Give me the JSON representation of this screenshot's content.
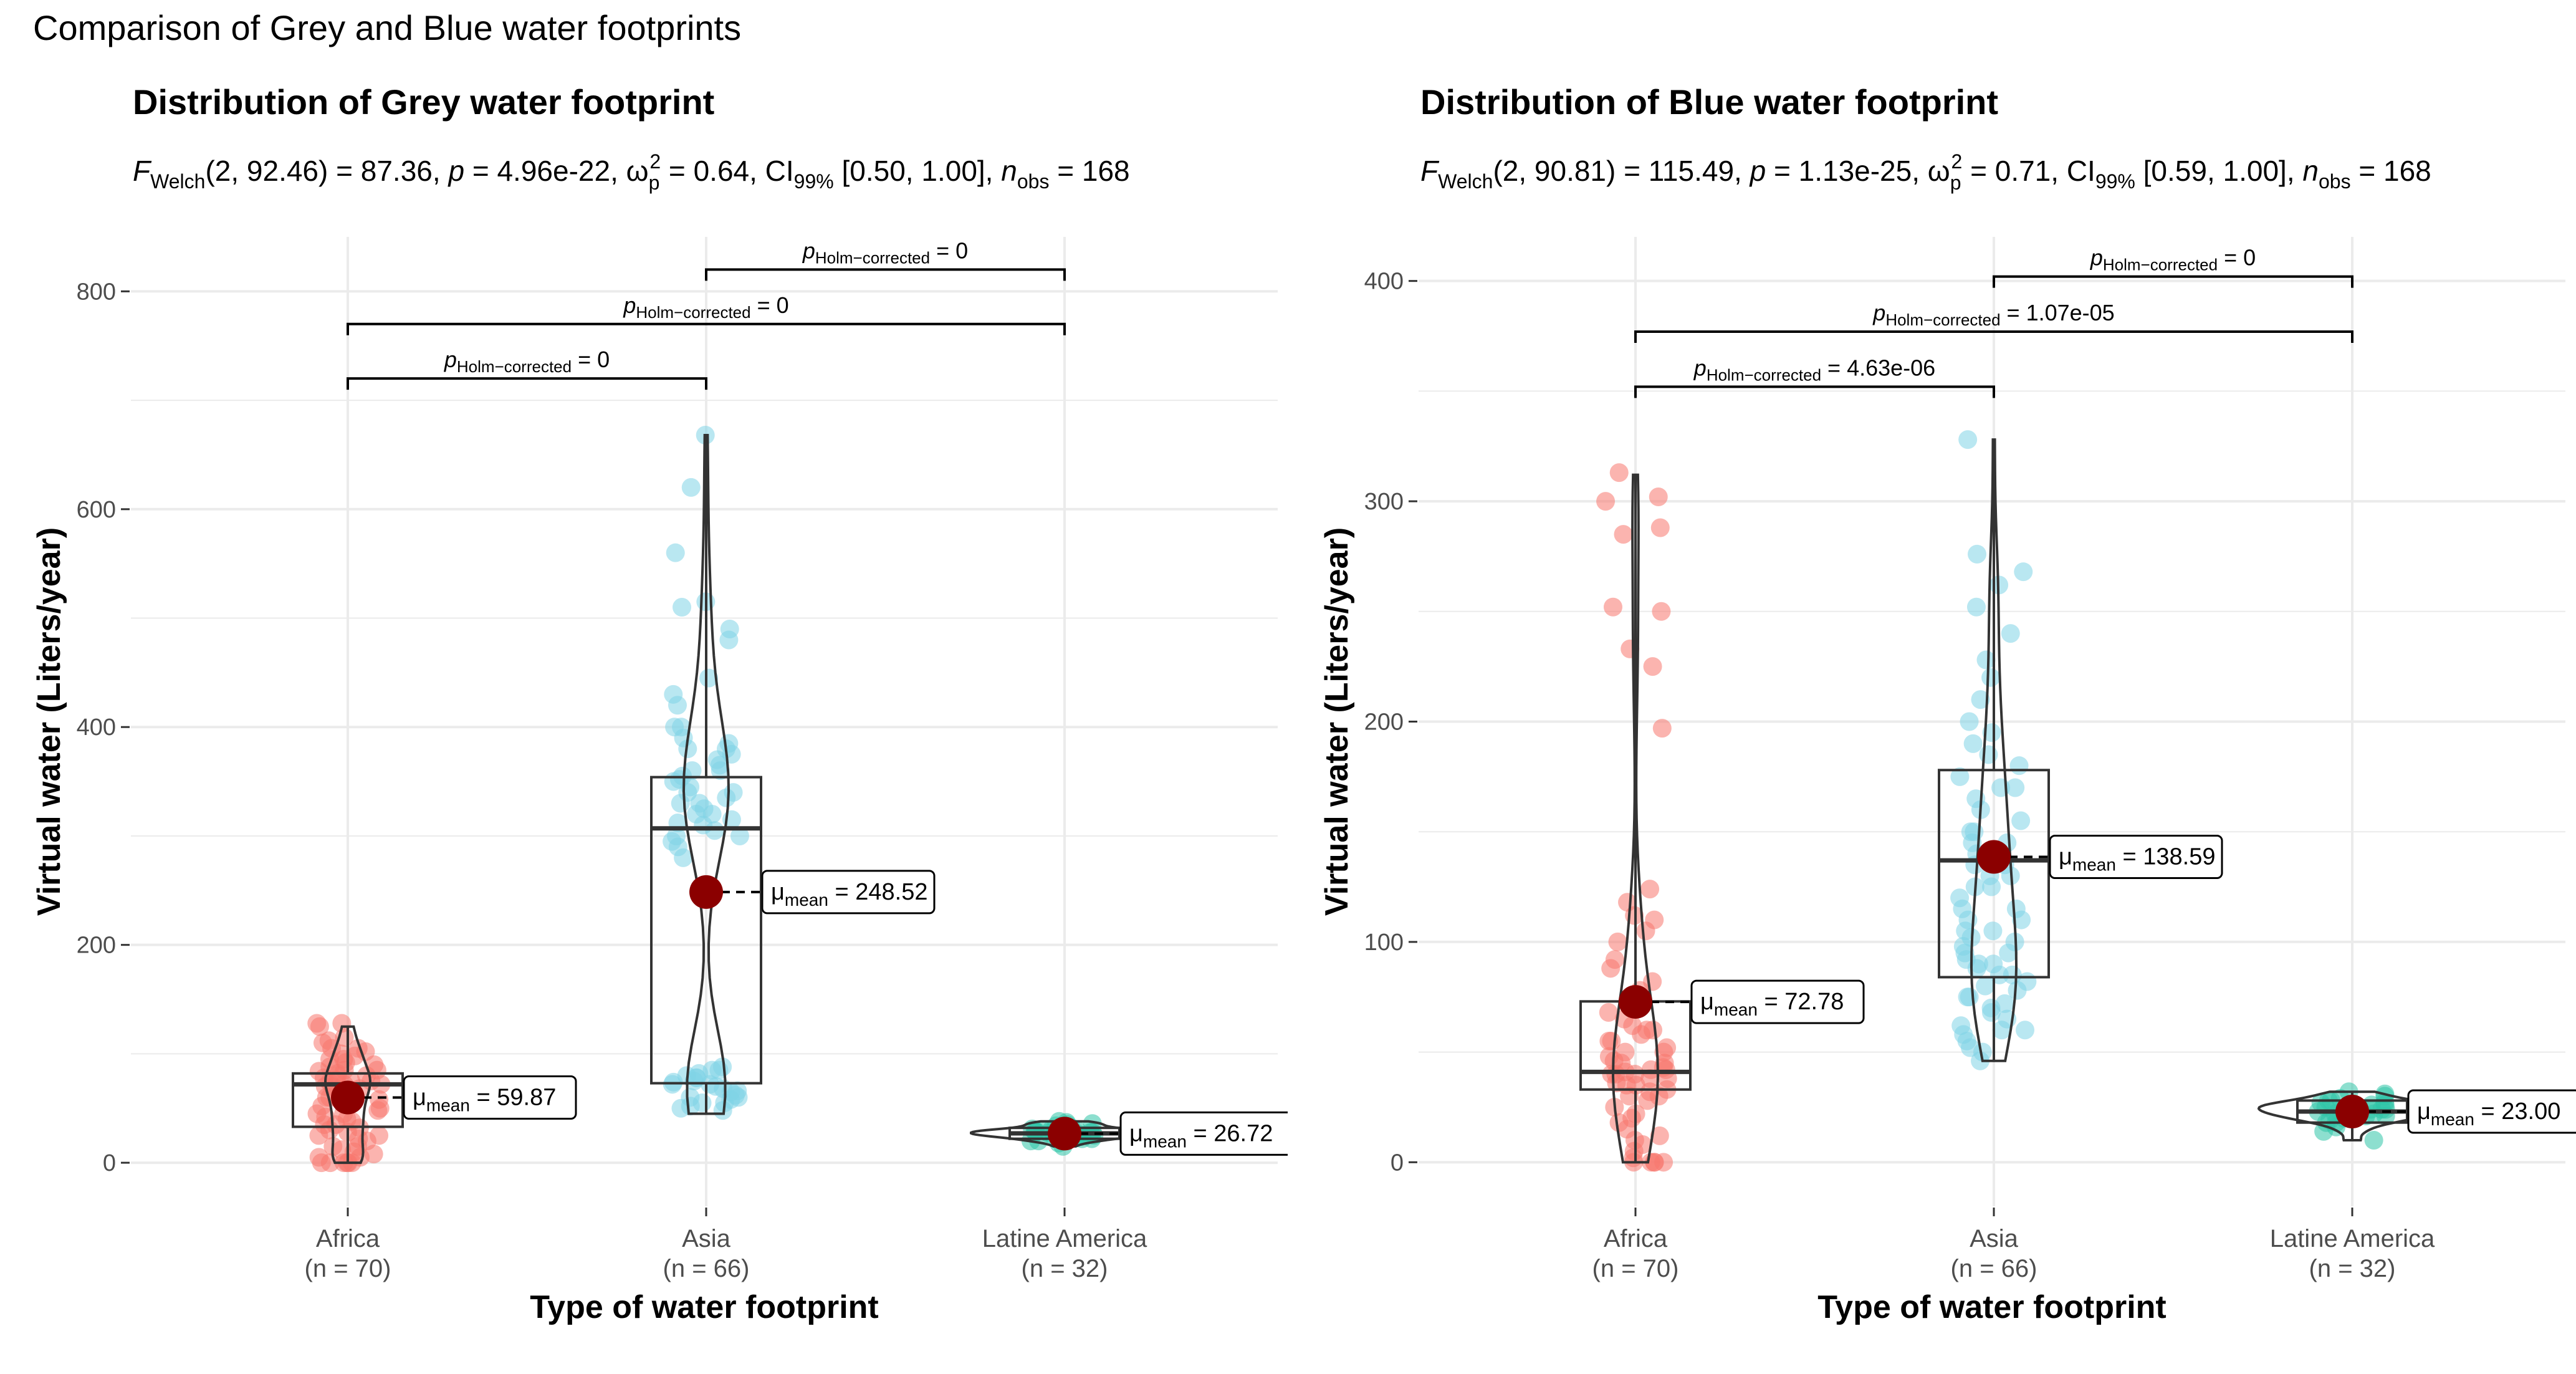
{
  "figure": {
    "title": "Comparison of Grey and Blue water footprints"
  },
  "colors": {
    "africa": "#f8766d",
    "asia": "#7fd3e6",
    "latin": "#2fc5a8",
    "mean": "#8b0000",
    "grid": "#ebebeb"
  },
  "chart_data": [
    {
      "type": "violin-box-jitter",
      "title": "Distribution of Grey water footprint",
      "subtitle": {
        "F": "F",
        "F_sub": "Welch",
        "args": "(2, 92.46)",
        "stat": " = 87.36, ",
        "p_label": "p",
        "p_val": " = 4.96e-22, ",
        "omega": "ω",
        "omega_sub": "p",
        "omega_sup": "2",
        "omega_val": " = 0.64, CI",
        "ci_sub": "99%",
        "ci_val": " [0.50, 1.00], ",
        "n_label": "n",
        "n_sub": "obs",
        "n_val": " = 168"
      },
      "xlabel": "Type of water footprint",
      "ylabel": "Virtual water (Liters/year)",
      "ylim": [
        -40,
        850
      ],
      "yticks": [
        0,
        200,
        400,
        600,
        800
      ],
      "categories": [
        "Africa",
        "Asia",
        "Latine America"
      ],
      "n_labels": [
        "(n = 70)",
        "(n = 66)",
        "(n = 32)"
      ],
      "means": [
        59.87,
        248.52,
        26.72
      ],
      "mean_labels": [
        "= 59.87",
        "= 248.52",
        "= 26.72"
      ],
      "mean_symbol": "μ",
      "mean_sub": "mean",
      "boxes": [
        {
          "q1": 33,
          "median": 72,
          "q3": 82,
          "min": 0,
          "max": 125
        },
        {
          "q1": 73,
          "median": 307,
          "q3": 354,
          "min": 45,
          "max": 668
        },
        {
          "q1": 22,
          "median": 27,
          "q3": 32,
          "min": 15,
          "max": 38
        }
      ],
      "points": [
        [
          0,
          0,
          0,
          0,
          0,
          0,
          5,
          8,
          10,
          12,
          15,
          20,
          22,
          25,
          28,
          30,
          32,
          35,
          38,
          40,
          42,
          45,
          48,
          50,
          52,
          55,
          58,
          60,
          62,
          65,
          68,
          70,
          70,
          72,
          72,
          74,
          75,
          76,
          78,
          80,
          80,
          82,
          84,
          85,
          88,
          90,
          92,
          95,
          98,
          100,
          102,
          105,
          110,
          112,
          115,
          125,
          128,
          128,
          5,
          15,
          25,
          35,
          45,
          55,
          65,
          75,
          85,
          95,
          105,
          60
        ],
        [
          48,
          50,
          52,
          55,
          58,
          60,
          62,
          65,
          68,
          70,
          72,
          74,
          75,
          78,
          80,
          82,
          85,
          88,
          60,
          66,
          72,
          78,
          85,
          55,
          290,
          300,
          310,
          315,
          320,
          325,
          330,
          335,
          340,
          345,
          350,
          355,
          360,
          365,
          370,
          375,
          380,
          385,
          390,
          400,
          420,
          430,
          445,
          480,
          490,
          510,
          515,
          560,
          620,
          668,
          300,
          320,
          340,
          360,
          380,
          400,
          280,
          295,
          305,
          312,
          330,
          352
        ],
        [
          15,
          18,
          20,
          22,
          23,
          24,
          25,
          25,
          26,
          26,
          27,
          27,
          28,
          28,
          29,
          29,
          30,
          30,
          31,
          32,
          33,
          34,
          35,
          36,
          37,
          38,
          20,
          22,
          24,
          26,
          28,
          30
        ]
      ],
      "significance": [
        {
          "from": 1,
          "to": 2,
          "y": 820,
          "label_p": "p",
          "label_sub": "Holm−corrected",
          "label_val": " = 0"
        },
        {
          "from": 0,
          "to": 2,
          "y": 770,
          "label_p": "p",
          "label_sub": "Holm−corrected",
          "label_val": " = 0"
        },
        {
          "from": 0,
          "to": 1,
          "y": 720,
          "label_p": "p",
          "label_sub": "Holm−corrected",
          "label_val": " = 0"
        }
      ]
    },
    {
      "type": "violin-box-jitter",
      "title": "Distribution of Blue water footprint",
      "subtitle": {
        "F": "F",
        "F_sub": "Welch",
        "args": "(2, 90.81)",
        "stat": " = 115.49, ",
        "p_label": "p",
        "p_val": " = 1.13e-25, ",
        "omega": "ω",
        "omega_sub": "p",
        "omega_sup": "2",
        "omega_val": " = 0.71, CI",
        "ci_sub": "99%",
        "ci_val": " [0.59, 1.00], ",
        "n_label": "n",
        "n_sub": "obs",
        "n_val": " = 168"
      },
      "xlabel": "Type of water footprint",
      "ylabel": "Virtual water (Liters/year)",
      "ylim": [
        -20,
        420
      ],
      "yticks": [
        0,
        100,
        200,
        300,
        400
      ],
      "categories": [
        "Africa",
        "Asia",
        "Latine America"
      ],
      "n_labels": [
        "(n = 70)",
        "(n = 66)",
        "(n = 32)"
      ],
      "means": [
        72.78,
        138.59,
        23.0
      ],
      "mean_labels": [
        "= 72.78",
        "= 138.59",
        "= 23.00"
      ],
      "mean_symbol": "μ",
      "mean_sub": "mean",
      "boxes": [
        {
          "q1": 33,
          "median": 41,
          "q3": 73,
          "min": 0,
          "max": 312
        },
        {
          "q1": 84,
          "median": 137,
          "q3": 178,
          "min": 46,
          "max": 328
        },
        {
          "q1": 18,
          "median": 23,
          "q3": 28,
          "min": 10,
          "max": 32
        }
      ],
      "points": [
        [
          0,
          0,
          0,
          0,
          0,
          2,
          5,
          8,
          10,
          12,
          15,
          18,
          20,
          22,
          25,
          28,
          30,
          32,
          33,
          35,
          36,
          38,
          40,
          40,
          41,
          42,
          43,
          45,
          48,
          50,
          52,
          55,
          58,
          60,
          62,
          65,
          68,
          70,
          72,
          75,
          78,
          82,
          88,
          92,
          100,
          105,
          110,
          112,
          118,
          124,
          197,
          225,
          233,
          250,
          252,
          285,
          288,
          300,
          302,
          313,
          30,
          35,
          40,
          45,
          50,
          38,
          42,
          46,
          55,
          60
        ],
        [
          46,
          50,
          52,
          55,
          58,
          60,
          62,
          65,
          68,
          70,
          72,
          75,
          78,
          80,
          82,
          85,
          88,
          90,
          92,
          95,
          98,
          100,
          102,
          105,
          110,
          115,
          120,
          125,
          130,
          135,
          140,
          145,
          150,
          155,
          160,
          165,
          170,
          175,
          180,
          185,
          190,
          195,
          200,
          210,
          220,
          228,
          240,
          252,
          262,
          268,
          276,
          328,
          90,
          110,
          130,
          150,
          170,
          60,
          75,
          85,
          95,
          105,
          115,
          125,
          135,
          145
        ],
        [
          10,
          14,
          16,
          18,
          19,
          20,
          21,
          22,
          22,
          23,
          23,
          24,
          24,
          25,
          25,
          26,
          26,
          27,
          27,
          28,
          28,
          29,
          30,
          31,
          32,
          20,
          22,
          24,
          26,
          18,
          21,
          25
        ]
      ],
      "significance": [
        {
          "from": 1,
          "to": 2,
          "y": 402,
          "label_p": "p",
          "label_sub": "Holm−corrected",
          "label_val": " = 0"
        },
        {
          "from": 0,
          "to": 2,
          "y": 377,
          "label_p": "p",
          "label_sub": "Holm−corrected",
          "label_val": " = 1.07e-05"
        },
        {
          "from": 0,
          "to": 1,
          "y": 352,
          "label_p": "p",
          "label_sub": "Holm−corrected",
          "label_val": " = 4.63e-06"
        }
      ]
    }
  ]
}
